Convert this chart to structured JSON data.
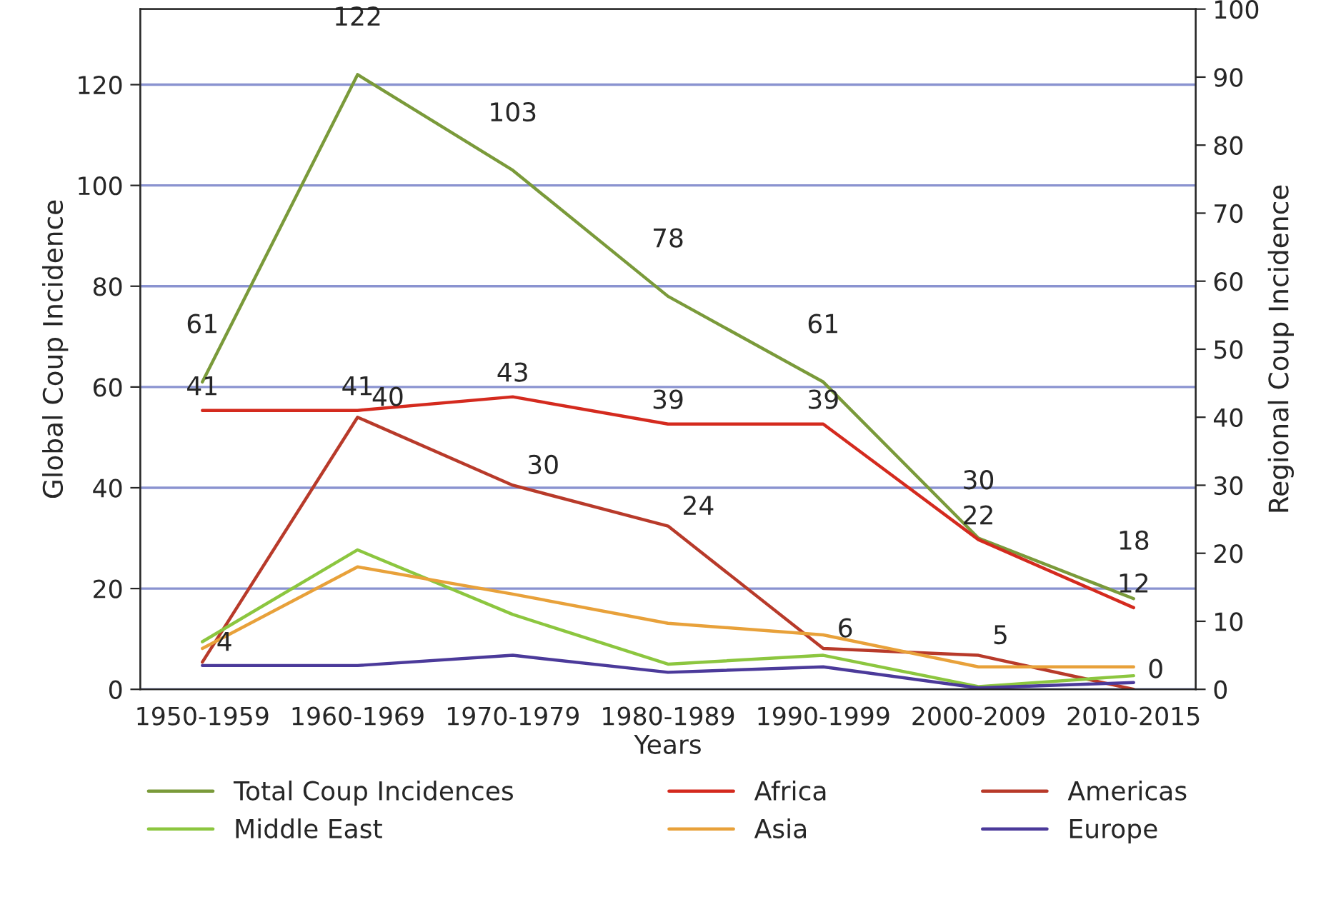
{
  "chart_data": {
    "type": "line",
    "xlabel": "Years",
    "ylabel": "Global Coup Incidence",
    "y2label": "Regional Coup Incidence",
    "categories": [
      "1950-1959",
      "1960-1969",
      "1970-1979",
      "1980-1989",
      "1990-1999",
      "2000-2009",
      "2010-2015"
    ],
    "series": [
      {
        "name": "Total Coup Incidences",
        "color": "#7a9a3a",
        "values": [
          61,
          122,
          103,
          78,
          61,
          30,
          18
        ],
        "value_labels": [
          "61",
          "122",
          "103",
          "78",
          "61",
          "30",
          "18"
        ]
      },
      {
        "name": "Africa",
        "color": "#d42a1e",
        "axis": "y2",
        "values": [
          41,
          41,
          43,
          39,
          39,
          22,
          12
        ],
        "value_labels": [
          "41",
          "41",
          "43",
          "39",
          "39",
          "22",
          "12"
        ]
      },
      {
        "name": "Americas",
        "color": "#b83a2a",
        "axis": "y2",
        "values": [
          4,
          40,
          30,
          24,
          6,
          5,
          0
        ],
        "value_labels": [
          "4",
          "40",
          "30",
          "24",
          "6",
          "5",
          "0"
        ]
      },
      {
        "name": "Middle East",
        "color": "#8cc63f",
        "axis": "y2",
        "values": [
          7,
          20.5,
          11,
          3.7,
          5,
          0.4,
          2
        ]
      },
      {
        "name": "Asia",
        "color": "#e8a13a",
        "axis": "y2",
        "values": [
          6,
          18,
          14,
          9.7,
          8,
          3.3,
          3.3
        ]
      },
      {
        "name": "Europe",
        "color": "#4b3a9a",
        "axis": "y2",
        "values": [
          3.5,
          3.5,
          5,
          2.5,
          3.3,
          0.2,
          1
        ]
      }
    ],
    "ylim": [
      0,
      135
    ],
    "yticks": [
      0,
      20,
      40,
      60,
      80,
      100,
      120
    ],
    "y2lim": [
      0,
      100
    ],
    "y2ticks": [
      0,
      10,
      20,
      30,
      40,
      50,
      60,
      70,
      80,
      90,
      100
    ],
    "grid": "y",
    "legend": "bottom",
    "marker": "none",
    "line_style": "solid"
  }
}
